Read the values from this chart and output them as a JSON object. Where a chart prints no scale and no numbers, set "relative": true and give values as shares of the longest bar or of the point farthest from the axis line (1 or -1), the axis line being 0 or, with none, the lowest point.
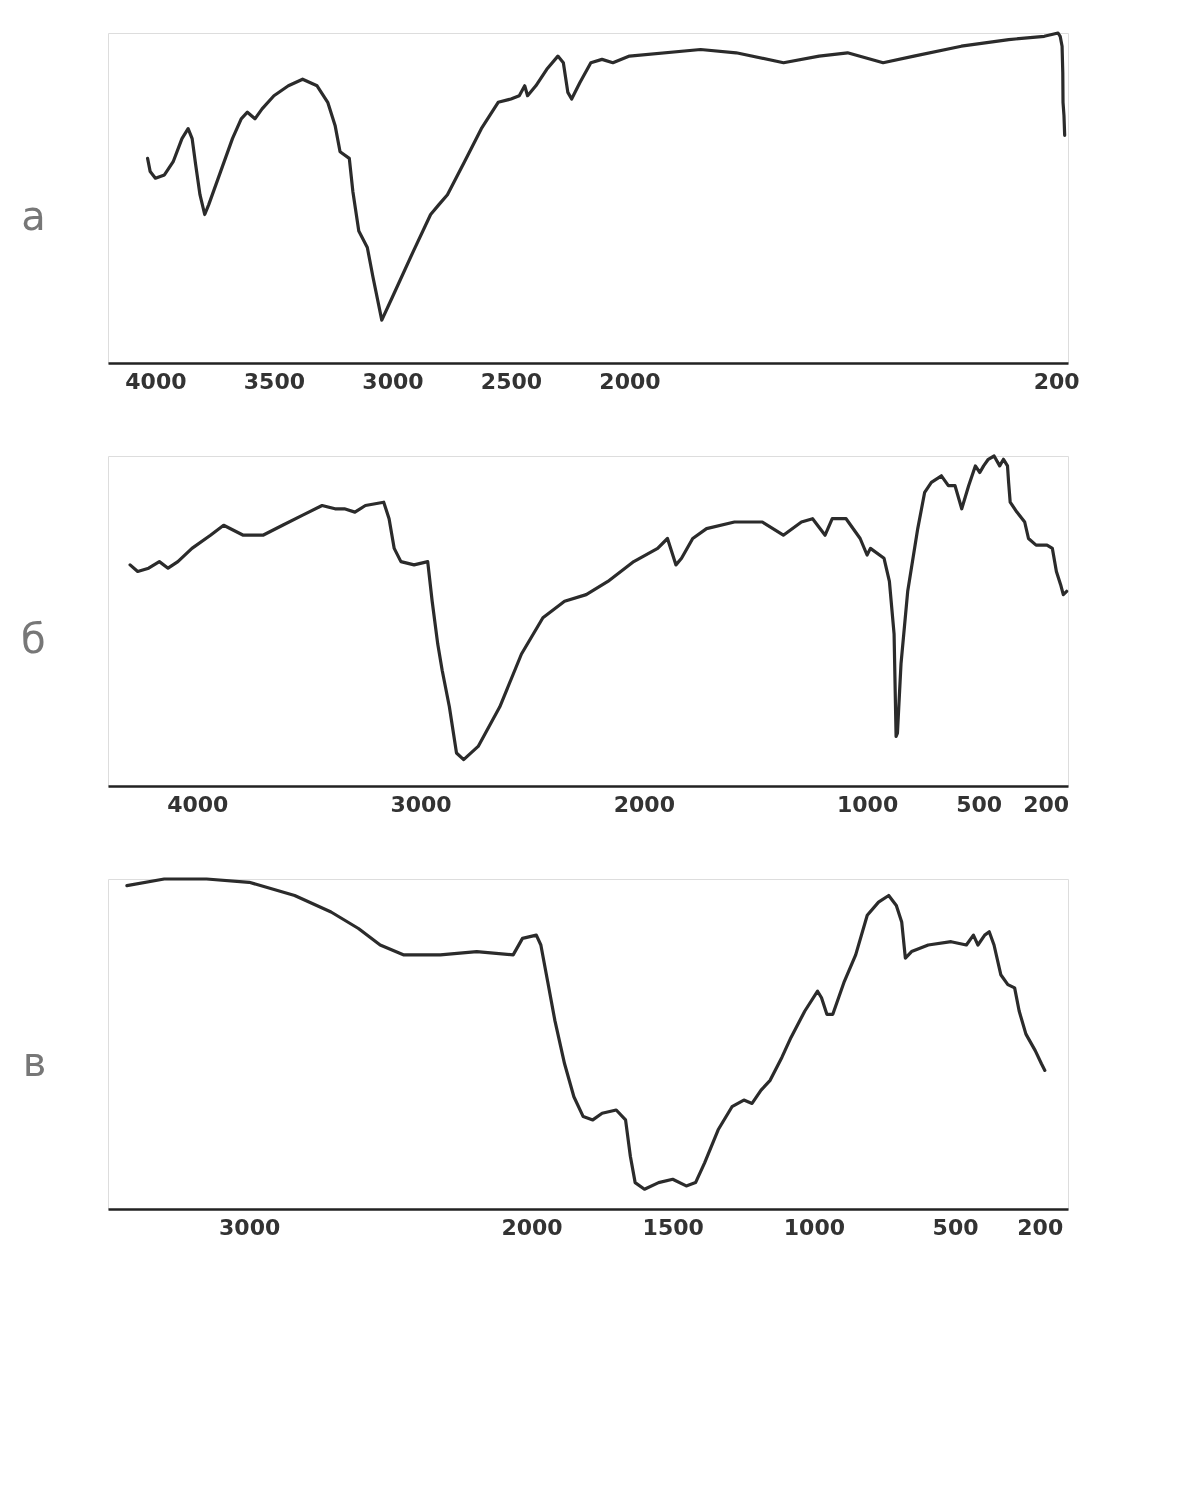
{
  "chart_data": [
    {
      "type": "line",
      "title": "а",
      "relative": true,
      "xlim": [
        4200,
        150
      ],
      "xticks": [
        4000,
        3500,
        3000,
        2500,
        2000,
        200
      ],
      "x": [
        4033,
        4022,
        4000,
        3962,
        3925,
        3888,
        3862,
        3845,
        3830,
        3812,
        3792,
        3775,
        3725,
        3675,
        3638,
        3612,
        3580,
        3550,
        3500,
        3439,
        3379,
        3318,
        3273,
        3242,
        3221,
        3182,
        3167,
        3142,
        3106,
        3082,
        3045,
        3000,
        2911,
        2839,
        2804,
        2768,
        2696,
        2625,
        2554,
        2500,
        2465,
        2442,
        2430,
        2395,
        2349,
        2302,
        2279,
        2260,
        2244,
        2209,
        2163,
        2116,
        2070,
        2000,
        1700,
        1550,
        1350,
        1200,
        1080,
        930,
        800,
        600,
        400,
        250,
        192,
        183,
        175,
        172,
        171,
        167,
        164
      ],
      "series": [
        {
          "color": "#2b2b2b",
          "values": [
            0.62,
            0.58,
            0.56,
            0.57,
            0.61,
            0.68,
            0.71,
            0.68,
            0.6,
            0.51,
            0.45,
            0.48,
            0.58,
            0.68,
            0.74,
            0.76,
            0.74,
            0.77,
            0.81,
            0.84,
            0.86,
            0.84,
            0.79,
            0.72,
            0.64,
            0.62,
            0.52,
            0.4,
            0.35,
            0.26,
            0.13,
            0.2,
            0.34,
            0.45,
            0.48,
            0.51,
            0.61,
            0.71,
            0.79,
            0.8,
            0.81,
            0.84,
            0.81,
            0.84,
            0.89,
            0.93,
            0.91,
            0.82,
            0.8,
            0.85,
            0.91,
            0.92,
            0.91,
            0.93,
            0.95,
            0.94,
            0.91,
            0.93,
            0.94,
            0.91,
            0.93,
            0.96,
            0.98,
            0.99,
            1.0,
            0.99,
            0.96,
            0.88,
            0.79,
            0.75,
            0.69
          ]
        }
      ]
    },
    {
      "type": "line",
      "title": "б",
      "relative": true,
      "xlim": [
        4400,
        100
      ],
      "xticks": [
        4000,
        3000,
        2000,
        1000,
        500,
        200
      ],
      "x": [
        4301,
        4267,
        4218,
        4170,
        4131,
        4087,
        4024,
        3941,
        3882,
        3794,
        3706,
        3618,
        3530,
        3441,
        3383,
        3341,
        3294,
        3247,
        3165,
        3141,
        3118,
        3088,
        3029,
        2968,
        2948,
        2923,
        2903,
        2871,
        2839,
        2807,
        2742,
        2645,
        2548,
        2452,
        2355,
        2258,
        2161,
        2045,
        1938,
        1894,
        1856,
        1831,
        1781,
        1719,
        1594,
        1469,
        1375,
        1294,
        1244,
        1188,
        1156,
        1094,
        1031,
        1000,
        985,
        924,
        900,
        879,
        870,
        864,
        848,
        818,
        773,
        742,
        712,
        667,
        636,
        606,
        576,
        545,
        515,
        495,
        478,
        457,
        431,
        406,
        389,
        371,
        366,
        359,
        329,
        294,
        277,
        243,
        194,
        170,
        152,
        133,
        121,
        106
      ],
      "series": [
        {
          "color": "#2b2b2b",
          "values": [
            0.67,
            0.65,
            0.66,
            0.68,
            0.66,
            0.68,
            0.72,
            0.76,
            0.79,
            0.76,
            0.76,
            0.79,
            0.82,
            0.85,
            0.84,
            0.84,
            0.83,
            0.85,
            0.86,
            0.81,
            0.72,
            0.68,
            0.67,
            0.68,
            0.56,
            0.43,
            0.35,
            0.24,
            0.1,
            0.08,
            0.12,
            0.24,
            0.4,
            0.51,
            0.56,
            0.58,
            0.62,
            0.68,
            0.72,
            0.75,
            0.67,
            0.69,
            0.75,
            0.78,
            0.8,
            0.8,
            0.76,
            0.8,
            0.81,
            0.76,
            0.81,
            0.81,
            0.75,
            0.7,
            0.72,
            0.69,
            0.62,
            0.46,
            0.15,
            0.16,
            0.37,
            0.59,
            0.78,
            0.89,
            0.92,
            0.94,
            0.91,
            0.91,
            0.84,
            0.91,
            0.97,
            0.95,
            0.97,
            0.99,
            1.0,
            0.97,
            0.99,
            0.97,
            0.92,
            0.86,
            0.83,
            0.8,
            0.75,
            0.73,
            0.73,
            0.72,
            0.65,
            0.61,
            0.58,
            0.59
          ]
        }
      ]
    },
    {
      "type": "line",
      "title": "в",
      "relative": true,
      "xlim": [
        3500,
        100
      ],
      "xticks": [
        3000,
        2000,
        1500,
        1000,
        500,
        200
      ],
      "x": [
        3433,
        3301,
        3151,
        3000,
        2839,
        2710,
        2613,
        2536,
        2452,
        2323,
        2194,
        2065,
        2032,
        1983,
        1967,
        1943,
        1917,
        1883,
        1850,
        1817,
        1783,
        1750,
        1700,
        1667,
        1650,
        1633,
        1600,
        1550,
        1500,
        1452,
        1419,
        1387,
        1339,
        1290,
        1248,
        1219,
        1187,
        1155,
        1113,
        1081,
        1032,
        987,
        973,
        954,
        933,
        892,
        852,
        811,
        771,
        735,
        708,
        689,
        676,
        654,
        595,
        514,
        460,
        435,
        419,
        395,
        379,
        362,
        338,
        313,
        289,
        273,
        249,
        216,
        194,
        182
      ],
      "series": [
        {
          "color": "#2b2b2b",
          "values": [
            0.98,
            1.0,
            1.0,
            0.99,
            0.95,
            0.9,
            0.85,
            0.8,
            0.77,
            0.77,
            0.78,
            0.77,
            0.82,
            0.83,
            0.8,
            0.69,
            0.57,
            0.44,
            0.34,
            0.28,
            0.27,
            0.29,
            0.3,
            0.27,
            0.16,
            0.08,
            0.06,
            0.08,
            0.09,
            0.07,
            0.08,
            0.14,
            0.24,
            0.31,
            0.33,
            0.32,
            0.36,
            0.39,
            0.46,
            0.52,
            0.6,
            0.66,
            0.64,
            0.59,
            0.59,
            0.69,
            0.77,
            0.89,
            0.93,
            0.95,
            0.92,
            0.87,
            0.76,
            0.78,
            0.8,
            0.81,
            0.8,
            0.83,
            0.8,
            0.83,
            0.84,
            0.8,
            0.71,
            0.68,
            0.67,
            0.6,
            0.53,
            0.48,
            0.44,
            0.42
          ]
        }
      ]
    }
  ]
}
